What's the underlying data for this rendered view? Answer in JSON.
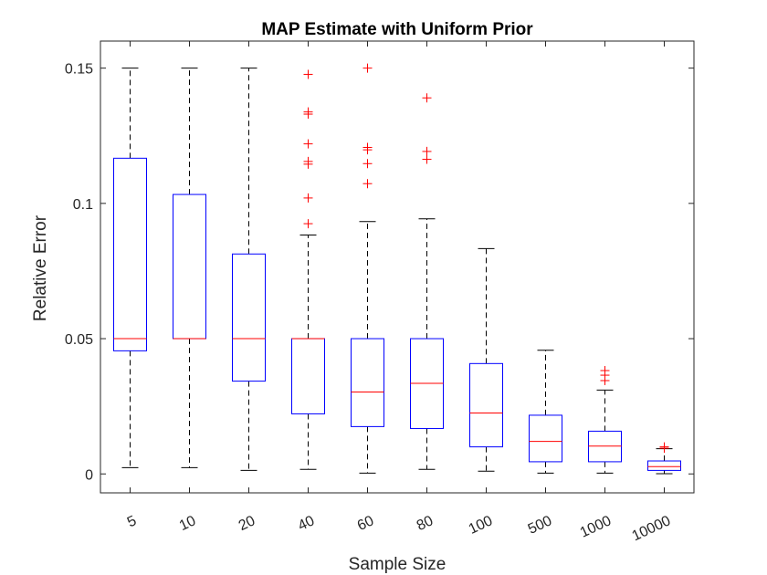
{
  "chart_data": {
    "type": "boxplot",
    "title": "MAP Estimate with Uniform Prior",
    "xlabel": "Sample Size",
    "ylabel": "Relative Error",
    "ylim": [
      -0.007,
      0.16
    ],
    "yticks": [
      0,
      0.05,
      0.1,
      0.15
    ],
    "ytick_labels": [
      "0",
      "0.05",
      "0.1",
      "0.15"
    ],
    "grid": false,
    "colors": {
      "box": "#0000ff",
      "median": "#ff0000",
      "whisker": "#000000",
      "outlier": "#ff0000",
      "axis": "#262626"
    },
    "categories": [
      "5",
      "10",
      "20",
      "40",
      "60",
      "80",
      "100",
      "500",
      "1000",
      "10000"
    ],
    "boxes": [
      {
        "category": "5",
        "whisker_low": 0.0023,
        "q1": 0.0455,
        "median": 0.05,
        "q3": 0.1167,
        "whisker_high": 0.15,
        "outliers": []
      },
      {
        "category": "10",
        "whisker_low": 0.0023,
        "q1": 0.05,
        "median": 0.05,
        "q3": 0.1033,
        "whisker_high": 0.15,
        "outliers": []
      },
      {
        "category": "20",
        "whisker_low": 0.0013,
        "q1": 0.0343,
        "median": 0.05,
        "q3": 0.0813,
        "whisker_high": 0.15,
        "outliers": []
      },
      {
        "category": "40",
        "whisker_low": 0.0017,
        "q1": 0.0222,
        "median": 0.05,
        "q3": 0.05,
        "whisker_high": 0.0883,
        "outliers": [
          0.0925,
          0.102,
          0.1145,
          0.1155,
          0.122,
          0.133,
          0.1338,
          0.1477
        ]
      },
      {
        "category": "60",
        "whisker_low": 0.0003,
        "q1": 0.0175,
        "median": 0.0303,
        "q3": 0.05,
        "whisker_high": 0.0933,
        "outliers": [
          0.1073,
          0.1147,
          0.1198,
          0.1207,
          0.15
        ]
      },
      {
        "category": "80",
        "whisker_low": 0.0017,
        "q1": 0.0168,
        "median": 0.0335,
        "q3": 0.05,
        "whisker_high": 0.0943,
        "outliers": [
          0.1163,
          0.1192,
          0.139
        ]
      },
      {
        "category": "100",
        "whisker_low": 0.001,
        "q1": 0.01,
        "median": 0.0225,
        "q3": 0.0408,
        "whisker_high": 0.0833,
        "outliers": []
      },
      {
        "category": "500",
        "whisker_low": 0.0003,
        "q1": 0.0045,
        "median": 0.012,
        "q3": 0.0217,
        "whisker_high": 0.0457,
        "outliers": []
      },
      {
        "category": "1000",
        "whisker_low": 0.0003,
        "q1": 0.0045,
        "median": 0.0103,
        "q3": 0.0158,
        "whisker_high": 0.031,
        "outliers": [
          0.0345,
          0.0365,
          0.0382
        ]
      },
      {
        "category": "10000",
        "whisker_low": 0.0001,
        "q1": 0.0013,
        "median": 0.0027,
        "q3": 0.0048,
        "whisker_high": 0.0093,
        "outliers": [
          0.0095,
          0.01
        ]
      }
    ]
  }
}
